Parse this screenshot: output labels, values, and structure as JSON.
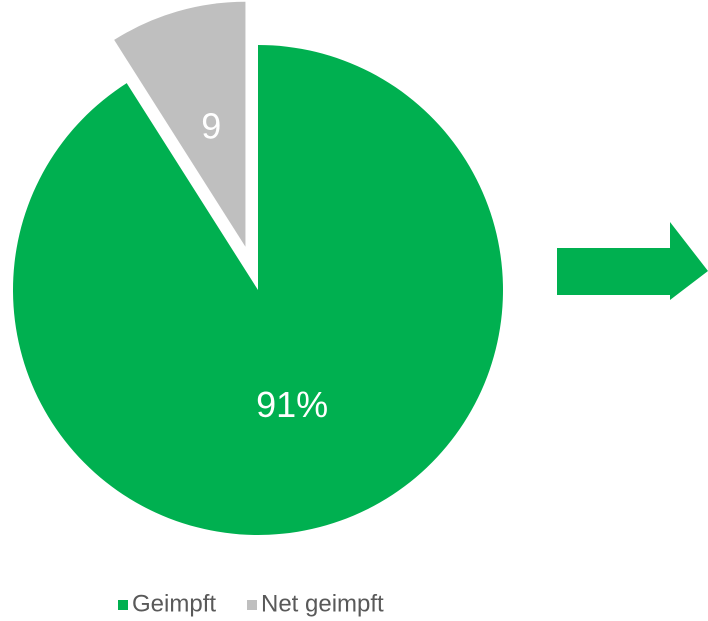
{
  "chart_data": {
    "type": "pie",
    "categories": [
      "Geimpft",
      "Net geimpft"
    ],
    "values": [
      91,
      9
    ],
    "value_labels": [
      "91%",
      "9"
    ],
    "colors": [
      "#00b050",
      "#bfbfbf"
    ],
    "legend": "bottom"
  }
}
